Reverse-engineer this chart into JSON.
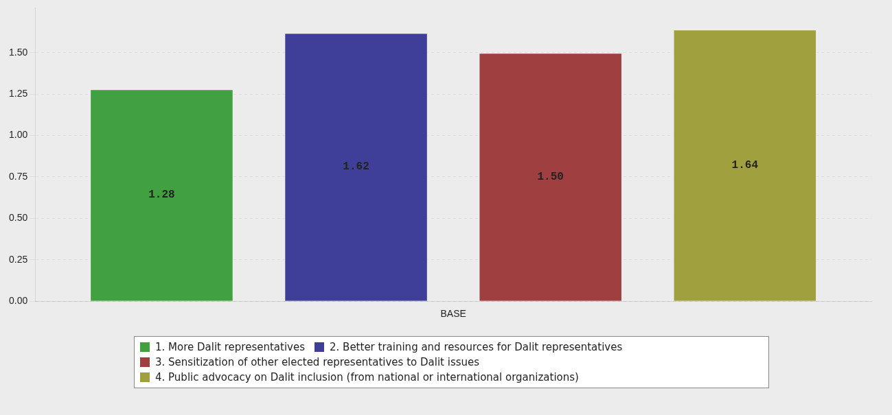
{
  "chart_data": {
    "type": "bar",
    "categories": [
      "BASE"
    ],
    "series": [
      {
        "name": "1. More Dalit representatives",
        "color": "#41a03f",
        "values": [
          1.28
        ],
        "value_labels": [
          "1.28"
        ]
      },
      {
        "name": "2. Better training and resources for Dalit representatives",
        "color": "#3f3f9a",
        "values": [
          1.62
        ],
        "value_labels": [
          "1.62"
        ]
      },
      {
        "name": "3. Sensitization of other elected representatives to Dalit issues",
        "color": "#9f3f3f",
        "values": [
          1.5
        ],
        "value_labels": [
          "1.50"
        ]
      },
      {
        "name": "4. Public advocacy on Dalit inclusion (from national or international organizations)",
        "color": "#a0a03f",
        "values": [
          1.64
        ],
        "value_labels": [
          "1.64"
        ]
      }
    ],
    "ylim": [
      0,
      1.77
    ],
    "yticks": [
      {
        "value": 0,
        "label": "0.00"
      },
      {
        "value": 0.25,
        "label": "0.25"
      },
      {
        "value": 0.5,
        "label": "0.50"
      },
      {
        "value": 0.75,
        "label": "0.75"
      },
      {
        "value": 1,
        "label": "1.00"
      },
      {
        "value": 1.25,
        "label": "1.25"
      },
      {
        "value": 1.5,
        "label": "1.50"
      }
    ],
    "grid": "y",
    "legend": "bottom"
  }
}
